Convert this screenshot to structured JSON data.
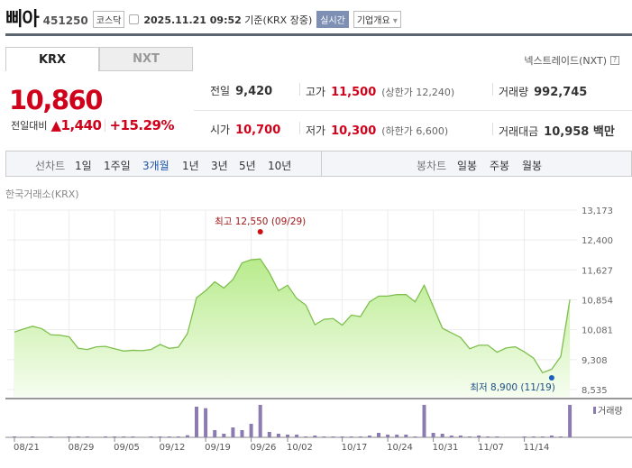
{
  "header": {
    "name": "삐아",
    "code": "451250",
    "market": "코스닥",
    "datetime": "2025.11.21 09:52",
    "basis": "기준(KRX 장중)",
    "realtime": "실시간",
    "company_info": "기업개요",
    "icon": "calendar-clock-icon"
  },
  "tabs": [
    {
      "label": "KRX",
      "active": true
    },
    {
      "label": "NXT",
      "active": false
    }
  ],
  "nxt_link": "넥스트레이드(NXT)",
  "help_icon": "?",
  "quote": {
    "price": "10,860",
    "change_label": "전일대비",
    "change": "1,440",
    "change_pct": "+15.29%",
    "up_icon": "triangle-up-icon",
    "prev_label": "전일",
    "prev": "9,420",
    "high_label": "고가",
    "high": "11,500",
    "upper_limit": "(상한가 12,240)",
    "volume_label": "거래량",
    "volume": "992,745",
    "open_label": "시가",
    "open": "10,700",
    "low_label": "저가",
    "low": "10,300",
    "lower_limit": "(하한가 6,600)",
    "amount_label": "거래대금",
    "amount": "10,958 백만"
  },
  "period": {
    "line_label": "선차트",
    "line_items": [
      "1일",
      "1주일",
      "3개월",
      "1년",
      "3년",
      "5년",
      "10년"
    ],
    "active": "3개월",
    "candle_label": "봉차트",
    "candle_items": [
      "일봉",
      "주봉",
      "월봉"
    ]
  },
  "colors": {
    "up": "#d0021b",
    "line": "#7fbf4d",
    "fill": "#b8eb8c",
    "volume": "#8c7bb0",
    "active_period": "#1e55a6",
    "low_marker": "#1a5fbf"
  },
  "chart_data": {
    "type": "area",
    "source_label": "한국거래소(KRX)",
    "y_ticks": [
      13173,
      12400,
      11627,
      10854,
      10081,
      9308,
      8535
    ],
    "y_tick_labels": [
      "13,173",
      "12,400",
      "11,627",
      "10,854",
      "10,081",
      "9,308",
      "8,535"
    ],
    "ylim": [
      8535,
      13173
    ],
    "x_tick_labels": [
      "08/21",
      "08/29",
      "09/05",
      "09/12",
      "09/19",
      "09/26",
      "10/02",
      "10/17",
      "10/24",
      "10/31",
      "11/07",
      "11/14"
    ],
    "x_tick_index": [
      0,
      6,
      11,
      16,
      21,
      26,
      30,
      36,
      41,
      46,
      51,
      56
    ],
    "price": [
      10020,
      10100,
      10170,
      10110,
      9950,
      9940,
      9900,
      9600,
      9570,
      9640,
      9650,
      9590,
      9530,
      9550,
      9540,
      9570,
      9700,
      9600,
      9630,
      9980,
      10910,
      11090,
      11320,
      11160,
      11380,
      11810,
      11890,
      11910,
      11550,
      11090,
      11230,
      10890,
      10720,
      10210,
      10350,
      10370,
      10200,
      10460,
      10420,
      10800,
      10950,
      10950,
      10990,
      10990,
      10800,
      11230,
      10680,
      10120,
      10000,
      9880,
      9590,
      9680,
      9680,
      9500,
      9610,
      9640,
      9510,
      9350,
      8970,
      9060,
      9390,
      10860
    ],
    "volume_relative": [
      3,
      1,
      3,
      1,
      3,
      1,
      3,
      3,
      3,
      1,
      3,
      3,
      3,
      3,
      1,
      3,
      3,
      3,
      3,
      7,
      102,
      97,
      24,
      12,
      33,
      24,
      45,
      108,
      18,
      12,
      9,
      9,
      3,
      6,
      3,
      3,
      3,
      3,
      3,
      6,
      15,
      9,
      9,
      9,
      3,
      108,
      15,
      12,
      6,
      6,
      3,
      6,
      3,
      3,
      1,
      1,
      3,
      3,
      3,
      6,
      3,
      108
    ],
    "volume_legend": "거래량",
    "high_annotation": "최고 12,550 (09/29)",
    "high_index": 27,
    "high_value": 12550,
    "low_annotation": "최저 8,900 (11/19)",
    "low_index": 59,
    "low_value": 8900
  }
}
